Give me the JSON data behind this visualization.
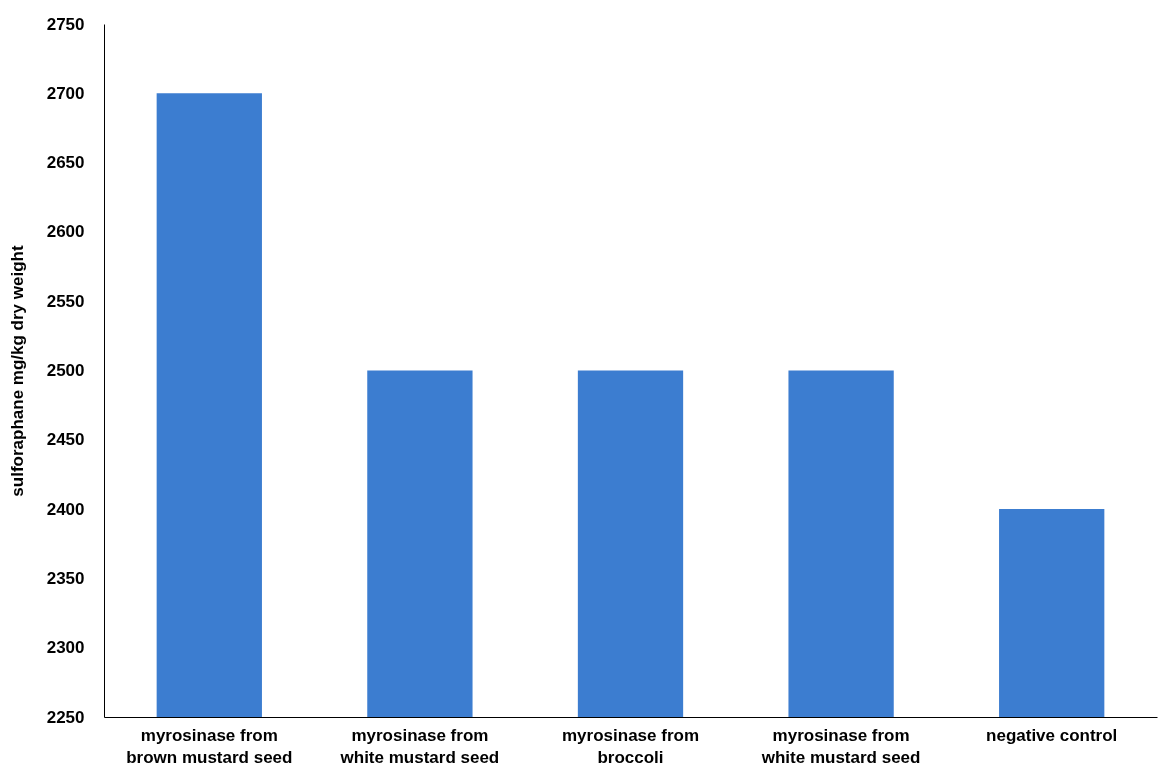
{
  "chart_data": {
    "type": "bar",
    "ylabel": "sulforaphane mg/kg dry weight",
    "categories": [
      "myrosinase from brown mustard seed",
      "myrosinase from white mustard seed",
      "myrosinase from broccoli",
      "myrosinase from white mustard seed",
      "negative control"
    ],
    "values": [
      2700,
      2500,
      2500,
      2500,
      2400
    ],
    "color": "#3c7dd0",
    "ylim": [
      2250,
      2750
    ],
    "yticks": [
      2250,
      2300,
      2350,
      2400,
      2450,
      2500,
      2550,
      2600,
      2650,
      2700,
      2750
    ],
    "grid": false
  }
}
